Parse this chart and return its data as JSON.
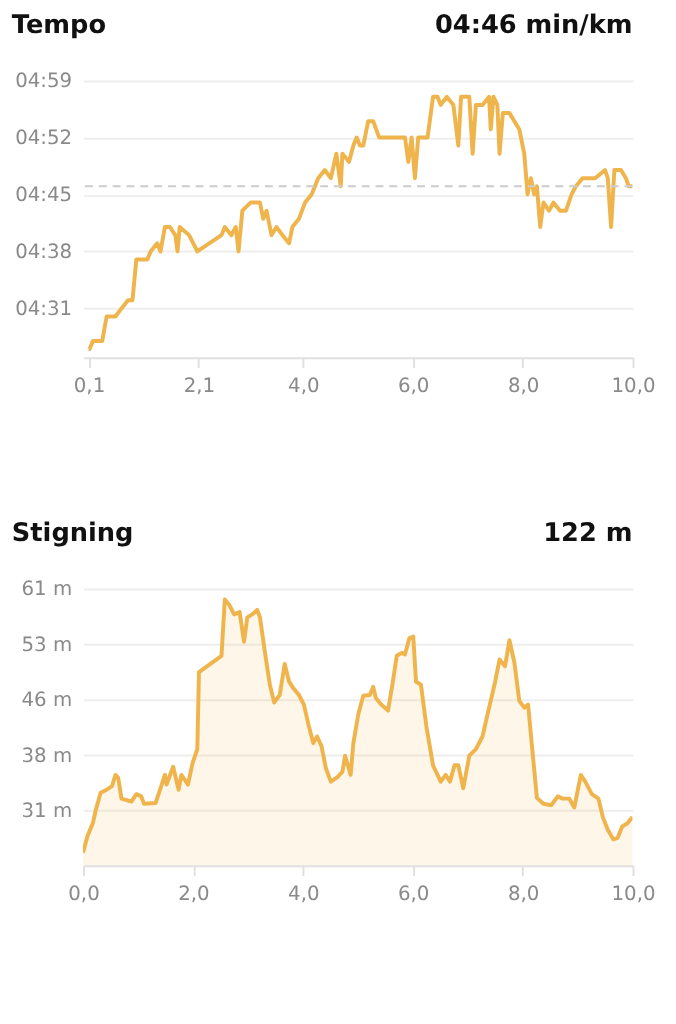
{
  "chart_data": [
    {
      "type": "line",
      "title": "Tempo",
      "annotations": [
        "04:46 min/km"
      ],
      "color": "#f0b44c",
      "grid": "y",
      "xlim": [
        0,
        10
      ],
      "xticks": [
        {
          "value": 0.1,
          "label": "0,1"
        },
        {
          "value": 2.1,
          "label": "2,1"
        },
        {
          "value": 4,
          "label": "4,0"
        },
        {
          "value": 6,
          "label": "6,0"
        },
        {
          "value": 8,
          "label": "8,0"
        },
        {
          "value": 10,
          "label": "10,0"
        }
      ],
      "ylim": [
        265,
        299
      ],
      "yticks": [
        {
          "value": 271,
          "label": "04:31"
        },
        {
          "value": 278,
          "label": "04:38"
        },
        {
          "value": 285,
          "label": "04:45"
        },
        {
          "value": 292,
          "label": "04:52"
        },
        {
          "value": 299,
          "label": "04:59"
        }
      ],
      "ref_lines": [
        {
          "axis": "y",
          "value": 286,
          "color": "#cccccc",
          "line_style": "dashed"
        }
      ],
      "x": [
        0.1,
        0.12,
        0.18,
        0.35,
        0.43,
        0.59,
        0.7,
        0.82,
        0.9,
        0.97,
        1.17,
        1.23,
        1.35,
        1.41,
        1.49,
        1.58,
        1.68,
        1.72,
        1.76,
        1.93,
        2.08,
        2.52,
        2.58,
        2.7,
        2.78,
        2.83,
        2.9,
        3.05,
        3.17,
        3.22,
        3.28,
        3.34,
        3.43,
        3.52,
        3.63,
        3.75,
        3.81,
        3.93,
        4.04,
        4.16,
        4.28,
        4.4,
        4.51,
        4.61,
        4.69,
        4.72,
        4.84,
        4.92,
        4.98,
        5.04,
        5.1,
        5.19,
        5.28,
        5.39,
        5.45,
        5.57,
        5.69,
        5.86,
        5.92,
        5.98,
        6.04,
        6.1,
        6.15,
        6.27,
        6.37,
        6.45,
        6.51,
        6.62,
        6.74,
        6.83,
        6.88,
        7.03,
        7.09,
        7.15,
        7.27,
        7.39,
        7.42,
        7.47,
        7.54,
        7.58,
        7.64,
        7.76,
        7.85,
        7.94,
        8.03,
        8.09,
        8.15,
        8.21,
        8.26,
        8.32,
        8.38,
        8.48,
        8.56,
        8.68,
        8.79,
        8.89,
        8.97,
        9.09,
        9.2,
        9.32,
        9.5,
        9.55,
        9.61,
        9.67,
        9.79,
        9.88,
        9.93,
        10
      ],
      "values": [
        266,
        266,
        267,
        267,
        270,
        270,
        271,
        272,
        272,
        277,
        277,
        278,
        279,
        278,
        281,
        281,
        280,
        278,
        281,
        280,
        278,
        280,
        281,
        280,
        281,
        278,
        283,
        284,
        284,
        284,
        282,
        283,
        280,
        281,
        280,
        279,
        281,
        282,
        284,
        285,
        287,
        288,
        287,
        290,
        286,
        290,
        289,
        291,
        292,
        291,
        291,
        294,
        294,
        292,
        292,
        292,
        292,
        292,
        289,
        292,
        287,
        292,
        292,
        292,
        297,
        297,
        296,
        297,
        296,
        291,
        297,
        297,
        290,
        296,
        296,
        297,
        293,
        297,
        296,
        290,
        295,
        295,
        294,
        293,
        290,
        285,
        287,
        285,
        286,
        281,
        284,
        283,
        284,
        283,
        283,
        285,
        286,
        287,
        287,
        287,
        288,
        287,
        281,
        288,
        288,
        287,
        286,
        286
      ]
    },
    {
      "type": "area",
      "title": "Stigning",
      "annotations": [
        "122 m"
      ],
      "color": "#f0b44c",
      "grid": "y",
      "xlim": [
        0,
        10
      ],
      "xticks": [
        {
          "value": 0,
          "label": "0,0"
        },
        {
          "value": 2,
          "label": "2,0"
        },
        {
          "value": 4,
          "label": "4,0"
        },
        {
          "value": 6,
          "label": "6,0"
        },
        {
          "value": 8,
          "label": "8,0"
        },
        {
          "value": 10,
          "label": "10,0"
        }
      ],
      "ylim": [
        23.4,
        60.8
      ],
      "yticks": [
        {
          "value": 30.8,
          "label": "31 m"
        },
        {
          "value": 38.3,
          "label": "38 m"
        },
        {
          "value": 45.8,
          "label": "46 m"
        },
        {
          "value": 53.3,
          "label": "53 m"
        },
        {
          "value": 60.8,
          "label": "61 m"
        }
      ],
      "x": [
        0,
        0.08,
        0.18,
        0.23,
        0.32,
        0.43,
        0.53,
        0.59,
        0.64,
        0.7,
        0.88,
        0.97,
        1.06,
        1.11,
        1.32,
        1.41,
        1.49,
        1.52,
        1.64,
        1.74,
        1.79,
        1.91,
        1.99,
        2.08,
        2.11,
        2.52,
        2.58,
        2.66,
        2.75,
        2.85,
        2.93,
        2.99,
        3.08,
        3.17,
        3.22,
        3.32,
        3.4,
        3.48,
        3.58,
        3.67,
        3.75,
        3.83,
        3.93,
        4.02,
        4.1,
        4.19,
        4.26,
        4.34,
        4.42,
        4.51,
        4.63,
        4.72,
        4.77,
        4.87,
        4.92,
        5.01,
        5.1,
        5.22,
        5.28,
        5.33,
        5.43,
        5.55,
        5.63,
        5.71,
        5.8,
        5.86,
        5.94,
        6.01,
        6.06,
        6.15,
        6.25,
        6.37,
        6.51,
        6.6,
        6.68,
        6.76,
        6.83,
        6.92,
        7.03,
        7.15,
        7.27,
        7.39,
        7.5,
        7.58,
        7.68,
        7.76,
        7.85,
        7.94,
        8.03,
        8.1,
        8.17,
        8.26,
        8.38,
        8.52,
        8.64,
        8.73,
        8.85,
        8.94,
        9.06,
        9.14,
        9.26,
        9.38,
        9.46,
        9.55,
        9.65,
        9.73,
        9.81,
        9.91,
        10
      ],
      "values": [
        25.1,
        27.3,
        29.1,
        30.8,
        33.2,
        33.6,
        34.1,
        35.6,
        35.2,
        32.4,
        32.0,
        33.0,
        32.7,
        31.7,
        31.8,
        33.8,
        35.6,
        34.3,
        36.7,
        33.6,
        35.6,
        34.3,
        37.1,
        39.1,
        49.5,
        51.7,
        59.3,
        58.6,
        57.3,
        57.6,
        53.6,
        56.9,
        57.3,
        57.9,
        56.9,
        51.7,
        47.8,
        45.4,
        46.4,
        50.6,
        48.2,
        47.3,
        46.4,
        45.1,
        42.5,
        39.9,
        40.8,
        39.5,
        36.5,
        34.7,
        35.3,
        36.0,
        38.2,
        35.6,
        39.9,
        43.8,
        46.3,
        46.4,
        47.5,
        46.0,
        45.1,
        44.3,
        47.8,
        51.7,
        52.1,
        51.9,
        54.1,
        54.3,
        48.2,
        47.8,
        42.1,
        36.9,
        34.7,
        35.6,
        34.7,
        36.9,
        36.9,
        33.8,
        38.2,
        39.1,
        40.8,
        44.7,
        48.2,
        51.2,
        50.3,
        53.8,
        50.8,
        45.6,
        44.7,
        45.1,
        39.5,
        32.5,
        31.7,
        31.5,
        32.7,
        32.4,
        32.4,
        31.2,
        35.6,
        34.7,
        33.0,
        32.4,
        29.9,
        28.2,
        26.9,
        27.1,
        28.6,
        29.1,
        29.9
      ]
    }
  ]
}
